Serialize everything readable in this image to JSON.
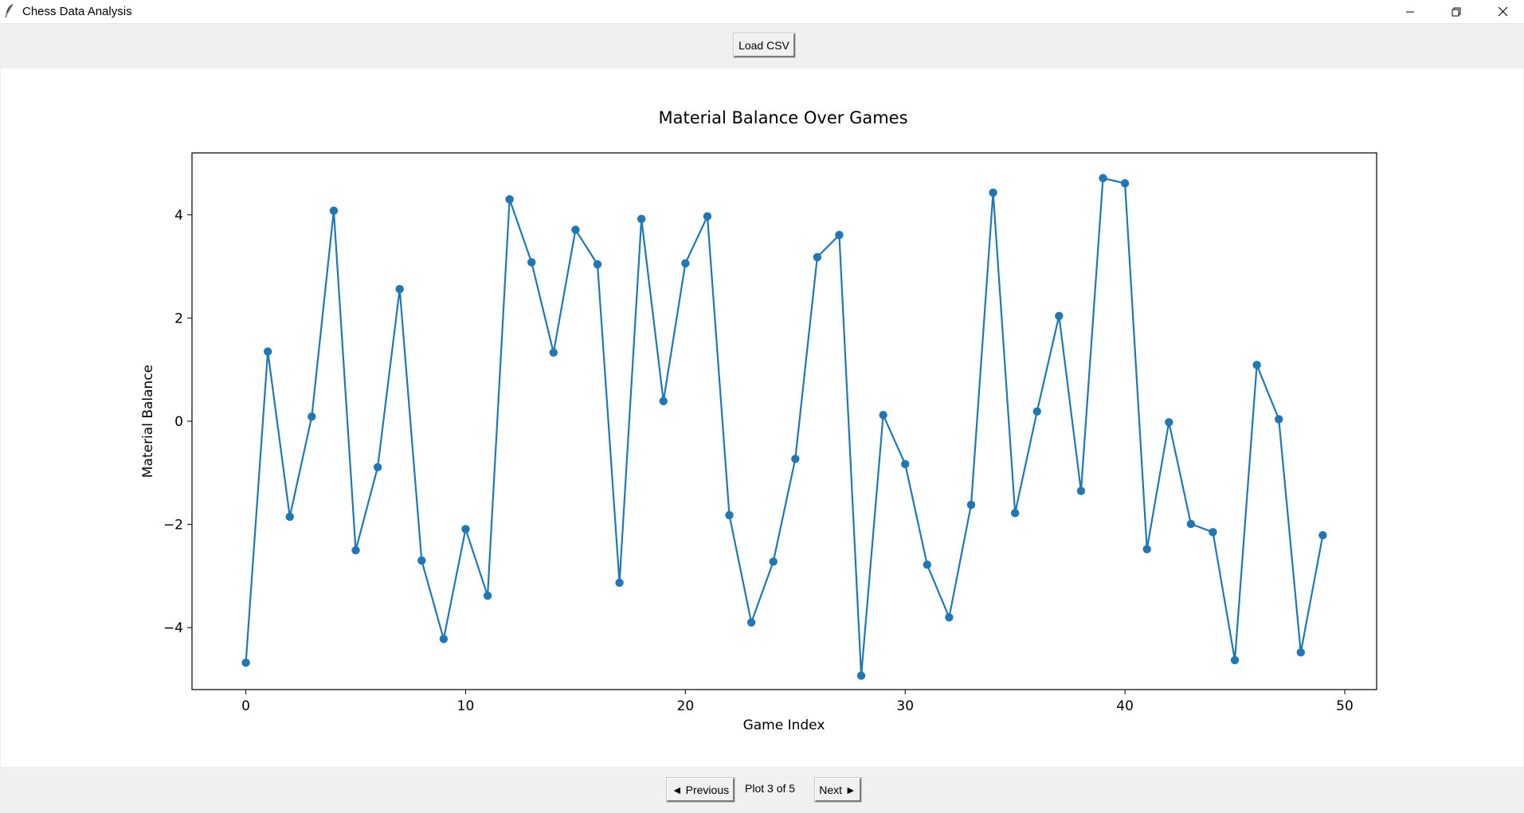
{
  "window": {
    "title": "Chess Data Analysis",
    "icon": "feather-icon",
    "controls": [
      "minimize-icon",
      "restore-icon",
      "close-icon"
    ]
  },
  "toolbar": {
    "load_label": "Load CSV"
  },
  "navigation": {
    "prev_label": "◄ Previous",
    "next_label": "Next ►",
    "status": "Plot 3 of 5"
  },
  "chart_data": {
    "type": "line",
    "title": "Material Balance Over Games",
    "xlabel": "Game Index",
    "ylabel": "Material Balance",
    "xlim": [
      -2.45,
      51.45
    ],
    "ylim": [
      -5.2,
      5.2
    ],
    "xticks": [
      0,
      10,
      20,
      30,
      40,
      50
    ],
    "yticks": [
      -4,
      -2,
      0,
      2,
      4
    ],
    "grid": false,
    "color": "#1f77b4",
    "markers": true,
    "series": [
      {
        "x": [
          0,
          1,
          2,
          3,
          4,
          5,
          6,
          7,
          8,
          9,
          10,
          11,
          12,
          13,
          14,
          15,
          16,
          17,
          18,
          19,
          20,
          21,
          22,
          23,
          24,
          25,
          26,
          27,
          28,
          29,
          30,
          31,
          32,
          33,
          34,
          35,
          36,
          37,
          38,
          39,
          40,
          41,
          42,
          43,
          44,
          45,
          46,
          47,
          48,
          49
        ],
        "values": [
          -4.68,
          1.35,
          -1.85,
          0.09,
          4.08,
          -2.5,
          -0.89,
          2.56,
          -2.7,
          -4.22,
          -2.09,
          -3.38,
          4.3,
          3.08,
          1.33,
          3.71,
          3.04,
          -3.13,
          3.92,
          0.39,
          3.06,
          3.97,
          -1.82,
          -3.9,
          -2.72,
          -0.73,
          3.18,
          3.61,
          -4.93,
          0.12,
          -0.83,
          -2.78,
          -3.8,
          -1.62,
          4.43,
          -1.78,
          0.19,
          2.04,
          -1.35,
          4.71,
          4.61,
          -2.48,
          -0.02,
          -1.99,
          -2.15,
          -4.63,
          1.09,
          0.04,
          -4.48,
          -2.21
        ]
      }
    ]
  }
}
